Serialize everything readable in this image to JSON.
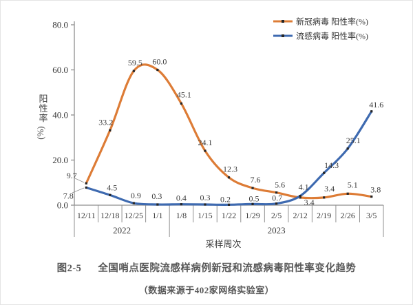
{
  "chart_data": {
    "type": "line",
    "title": "",
    "ylabel": "阳性率(%)",
    "xlabel": "采样周次",
    "ylim": [
      0,
      80
    ],
    "ytick_values": [
      0,
      20,
      40,
      60,
      80
    ],
    "ytick_labels": [
      "0.0",
      "20.0",
      "40.0",
      "60.0",
      "80.0"
    ],
    "categories": [
      "12/11",
      "12/18",
      "12/25",
      "1/1",
      "1/8",
      "1/15",
      "1/22",
      "1/29",
      "2/5",
      "2/12",
      "2/19",
      "2/26",
      "3/5"
    ],
    "year_groups": [
      {
        "label": "2022",
        "span": 4
      },
      {
        "label": "2023",
        "span": 9
      }
    ],
    "series": [
      {
        "name": "新冠病毒 阳性率(%)",
        "color": "#DD7C36",
        "values": [
          9.7,
          33.2,
          59.5,
          60.0,
          45.1,
          24.1,
          12.3,
          7.6,
          5.6,
          3.4,
          3.4,
          5.1,
          3.8
        ]
      },
      {
        "name": "流感病毒 阳性率(%)",
        "color": "#3E6AB0",
        "values": [
          7.8,
          4.5,
          0.9,
          0.3,
          0.4,
          0.3,
          0.2,
          0.5,
          0.7,
          4.1,
          14.3,
          25.1,
          41.6
        ]
      }
    ],
    "legend_position": "top-right",
    "grid": false,
    "smooth_lines": true,
    "marker": {
      "shape": "square",
      "color": "#262626"
    }
  },
  "caption": {
    "label": "图2-5",
    "title": "全国哨点医院流感样病例新冠和流感病毒阳性率变化趋势",
    "source": "（数据来源于402家网络实验室）"
  },
  "colors": {
    "axis": "#8f8f8f",
    "text": "#3a3a3a",
    "caption": "#575757",
    "background": "#ffffff"
  }
}
